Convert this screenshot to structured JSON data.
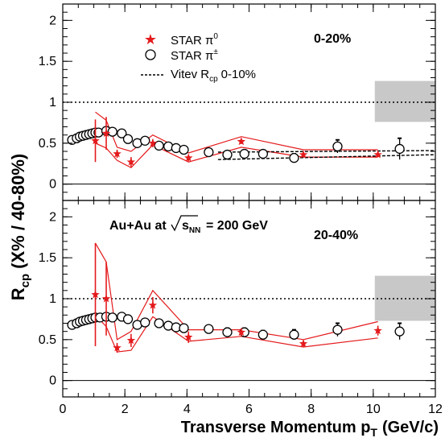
{
  "colors": {
    "star": "#e41a1c",
    "band_gray": "#c8c8c8",
    "axis": "#000000"
  },
  "chart_data": {
    "type": "scatter",
    "xlabel_main": "Transverse Momentum p",
    "xlabel_sub": "T",
    "xlabel_tail": "(GeV/c)",
    "ylabel_main": "R",
    "ylabel_sub": "cp",
    "ylabel_tail": "(X% / 40-80%)",
    "xlim": [
      0,
      12
    ],
    "ylim": [
      -0.2,
      2.2
    ],
    "x_ticks": [
      "0",
      "2",
      "4",
      "6",
      "8",
      "10",
      "12"
    ],
    "y_ticks": [
      "0",
      "0.5",
      "1",
      "1.5",
      "2"
    ],
    "reference_line_y": 1,
    "legend": {
      "star_label": "STAR π",
      "star_sup": "0",
      "circle_label": "STAR π",
      "circle_sup": "±",
      "vitev_label": "Vitev R",
      "vitev_sub": "cp",
      "vitev_tail": "0-10%"
    },
    "panels": [
      {
        "label": "0-20%",
        "norm_band": {
          "x": [
            10.05,
            12.0
          ],
          "y": [
            0.76,
            1.26
          ]
        },
        "pi0": [
          {
            "x": 1.05,
            "y": 0.53,
            "err": 0.26
          },
          {
            "x": 1.4,
            "y": 0.62,
            "err": 0.2
          },
          {
            "x": 1.75,
            "y": 0.37,
            "err": 0.05
          },
          {
            "x": 2.2,
            "y": 0.27,
            "err": 0.06
          },
          {
            "x": 2.9,
            "y": 0.5,
            "err": 0.05
          },
          {
            "x": 4.05,
            "y": 0.32,
            "err": 0.04
          },
          {
            "x": 5.75,
            "y": 0.52,
            "err": 0.03
          },
          {
            "x": 7.75,
            "y": 0.36,
            "err": 0.03
          },
          {
            "x": 10.15,
            "y": 0.36,
            "err": 0.03
          }
        ],
        "pi0_band_upper": [
          [
            1.05,
            0.88
          ],
          [
            1.4,
            0.78
          ],
          [
            1.75,
            0.45
          ],
          [
            2.2,
            0.4
          ],
          [
            2.9,
            0.6
          ],
          [
            4.05,
            0.38
          ],
          [
            5.75,
            0.58
          ],
          [
            7.75,
            0.42
          ],
          [
            10.15,
            0.42
          ]
        ],
        "pi0_band_lower": [
          [
            1.05,
            0.5
          ],
          [
            1.4,
            0.44
          ],
          [
            1.75,
            0.29
          ],
          [
            2.2,
            0.2
          ],
          [
            2.9,
            0.48
          ],
          [
            4.05,
            0.27
          ],
          [
            5.75,
            0.45
          ],
          [
            7.75,
            0.33
          ],
          [
            10.15,
            0.33
          ]
        ],
        "pich": [
          {
            "x": 0.3,
            "y": 0.54,
            "err": 0.01
          },
          {
            "x": 0.45,
            "y": 0.56,
            "err": 0.01
          },
          {
            "x": 0.55,
            "y": 0.58,
            "err": 0.01
          },
          {
            "x": 0.65,
            "y": 0.59,
            "err": 0.01
          },
          {
            "x": 0.75,
            "y": 0.6,
            "err": 0.01
          },
          {
            "x": 0.85,
            "y": 0.61,
            "err": 0.01
          },
          {
            "x": 0.95,
            "y": 0.62,
            "err": 0.01
          },
          {
            "x": 1.05,
            "y": 0.63,
            "err": 0.01
          },
          {
            "x": 1.15,
            "y": 0.63,
            "err": 0.01
          },
          {
            "x": 1.4,
            "y": 0.65,
            "err": 0.02
          },
          {
            "x": 1.6,
            "y": 0.64,
            "err": 0.02
          },
          {
            "x": 1.9,
            "y": 0.62,
            "err": 0.02
          },
          {
            "x": 2.1,
            "y": 0.55,
            "err": 0.03
          },
          {
            "x": 2.4,
            "y": 0.5,
            "err": 0.03
          },
          {
            "x": 2.65,
            "y": 0.53,
            "err": 0.03
          },
          {
            "x": 3.1,
            "y": 0.47,
            "err": 0.03
          },
          {
            "x": 3.4,
            "y": 0.46,
            "err": 0.03
          },
          {
            "x": 3.65,
            "y": 0.44,
            "err": 0.03
          },
          {
            "x": 3.9,
            "y": 0.42,
            "err": 0.03
          },
          {
            "x": 4.7,
            "y": 0.39,
            "err": 0.03
          },
          {
            "x": 5.3,
            "y": 0.36,
            "err": 0.04
          },
          {
            "x": 5.85,
            "y": 0.37,
            "err": 0.04
          },
          {
            "x": 6.45,
            "y": 0.37,
            "err": 0.04
          },
          {
            "x": 7.45,
            "y": 0.32,
            "err": 0.05
          },
          {
            "x": 8.85,
            "y": 0.46,
            "err": 0.08
          },
          {
            "x": 10.85,
            "y": 0.43,
            "err": 0.13
          }
        ],
        "vitev_upper": [
          [
            5.0,
            0.39
          ],
          [
            12.0,
            0.41
          ]
        ],
        "vitev_lower": [
          [
            5.0,
            0.3
          ],
          [
            12.0,
            0.36
          ]
        ]
      },
      {
        "label": "20-40%",
        "annotation_prefix": "Au+Au at",
        "annotation_sqrt_s": "s",
        "annotation_sub": "NN",
        "annotation_suffix": "= 200 GeV",
        "norm_band": {
          "x": [
            10.05,
            12.0
          ],
          "y": [
            0.73,
            1.28
          ]
        },
        "pi0": [
          {
            "x": 1.05,
            "y": 1.05,
            "err": 0.63
          },
          {
            "x": 1.4,
            "y": 1.0,
            "err": 0.45
          },
          {
            "x": 1.75,
            "y": 0.4,
            "err": 0.06
          },
          {
            "x": 2.2,
            "y": 0.49,
            "err": 0.08
          },
          {
            "x": 2.9,
            "y": 0.92,
            "err": 0.1
          },
          {
            "x": 4.05,
            "y": 0.53,
            "err": 0.07
          },
          {
            "x": 5.75,
            "y": 0.59,
            "err": 0.05
          },
          {
            "x": 7.75,
            "y": 0.45,
            "err": 0.04
          },
          {
            "x": 10.15,
            "y": 0.61,
            "err": 0.06
          }
        ],
        "pi0_band_upper": [
          [
            1.05,
            1.68
          ],
          [
            1.4,
            1.45
          ],
          [
            1.75,
            0.5
          ],
          [
            2.2,
            0.6
          ],
          [
            2.9,
            1.1
          ],
          [
            4.05,
            0.62
          ],
          [
            5.75,
            0.62
          ],
          [
            7.75,
            0.5
          ],
          [
            10.15,
            0.72
          ]
        ],
        "pi0_band_lower": [
          [
            1.05,
            0.8
          ],
          [
            1.4,
            0.66
          ],
          [
            1.75,
            0.35
          ],
          [
            2.2,
            0.37
          ],
          [
            2.9,
            0.78
          ],
          [
            4.05,
            0.48
          ],
          [
            5.75,
            0.54
          ],
          [
            7.75,
            0.41
          ],
          [
            10.15,
            0.52
          ]
        ],
        "pich": [
          {
            "x": 0.3,
            "y": 0.68,
            "err": 0.01
          },
          {
            "x": 0.45,
            "y": 0.7,
            "err": 0.01
          },
          {
            "x": 0.55,
            "y": 0.72,
            "err": 0.01
          },
          {
            "x": 0.65,
            "y": 0.73,
            "err": 0.01
          },
          {
            "x": 0.75,
            "y": 0.74,
            "err": 0.01
          },
          {
            "x": 0.85,
            "y": 0.75,
            "err": 0.01
          },
          {
            "x": 0.95,
            "y": 0.76,
            "err": 0.01
          },
          {
            "x": 1.05,
            "y": 0.77,
            "err": 0.01
          },
          {
            "x": 1.2,
            "y": 0.77,
            "err": 0.02
          },
          {
            "x": 1.4,
            "y": 0.78,
            "err": 0.02
          },
          {
            "x": 1.6,
            "y": 0.77,
            "err": 0.02
          },
          {
            "x": 1.9,
            "y": 0.78,
            "err": 0.02
          },
          {
            "x": 2.1,
            "y": 0.75,
            "err": 0.03
          },
          {
            "x": 2.4,
            "y": 0.68,
            "err": 0.03
          },
          {
            "x": 2.65,
            "y": 0.71,
            "err": 0.03
          },
          {
            "x": 3.1,
            "y": 0.7,
            "err": 0.03
          },
          {
            "x": 3.4,
            "y": 0.67,
            "err": 0.03
          },
          {
            "x": 3.65,
            "y": 0.65,
            "err": 0.03
          },
          {
            "x": 3.9,
            "y": 0.64,
            "err": 0.03
          },
          {
            "x": 4.7,
            "y": 0.63,
            "err": 0.03
          },
          {
            "x": 5.3,
            "y": 0.59,
            "err": 0.05
          },
          {
            "x": 5.85,
            "y": 0.59,
            "err": 0.05
          },
          {
            "x": 6.45,
            "y": 0.56,
            "err": 0.05
          },
          {
            "x": 7.45,
            "y": 0.56,
            "err": 0.06
          },
          {
            "x": 8.85,
            "y": 0.62,
            "err": 0.08
          },
          {
            "x": 10.85,
            "y": 0.6,
            "err": 0.1
          }
        ]
      }
    ]
  }
}
